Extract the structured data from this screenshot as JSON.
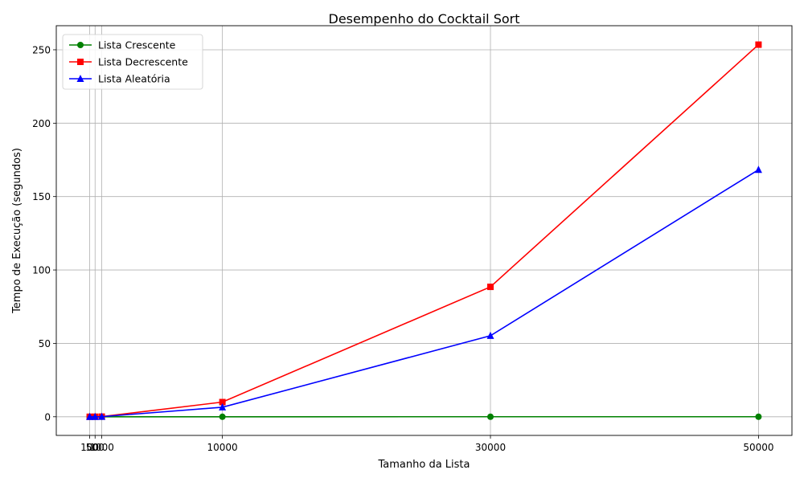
{
  "chart_data": {
    "type": "line",
    "title": "Desempenho do Cocktail Sort",
    "xlabel": "Tamanho da Lista",
    "ylabel": "Tempo de Execução (segundos)",
    "x": [
      100,
      500,
      1000,
      10000,
      30000,
      50000
    ],
    "x_tick_labels": [
      "100",
      "500",
      "1000",
      "10000",
      "30000",
      "50000"
    ],
    "xlim": [
      -2395,
      52495
    ],
    "ylim": [
      -12.7,
      266.4
    ],
    "y_ticks": [
      0,
      50,
      100,
      150,
      200,
      250
    ],
    "grid": true,
    "legend_position": "upper-left",
    "series": [
      {
        "name": "Lista Crescente",
        "color": "#008000",
        "marker": "circle",
        "values": [
          0.0,
          0.0,
          0.0,
          0.01,
          0.02,
          0.03
        ]
      },
      {
        "name": "Lista Decrescente",
        "color": "#ff0000",
        "marker": "square",
        "values": [
          0.0,
          0.03,
          0.1,
          10.0,
          88.5,
          253.5
        ]
      },
      {
        "name": "Lista Aleatória",
        "color": "#0000ff",
        "marker": "triangle",
        "values": [
          0.0,
          0.02,
          0.07,
          6.5,
          55.2,
          168.3
        ]
      }
    ]
  }
}
